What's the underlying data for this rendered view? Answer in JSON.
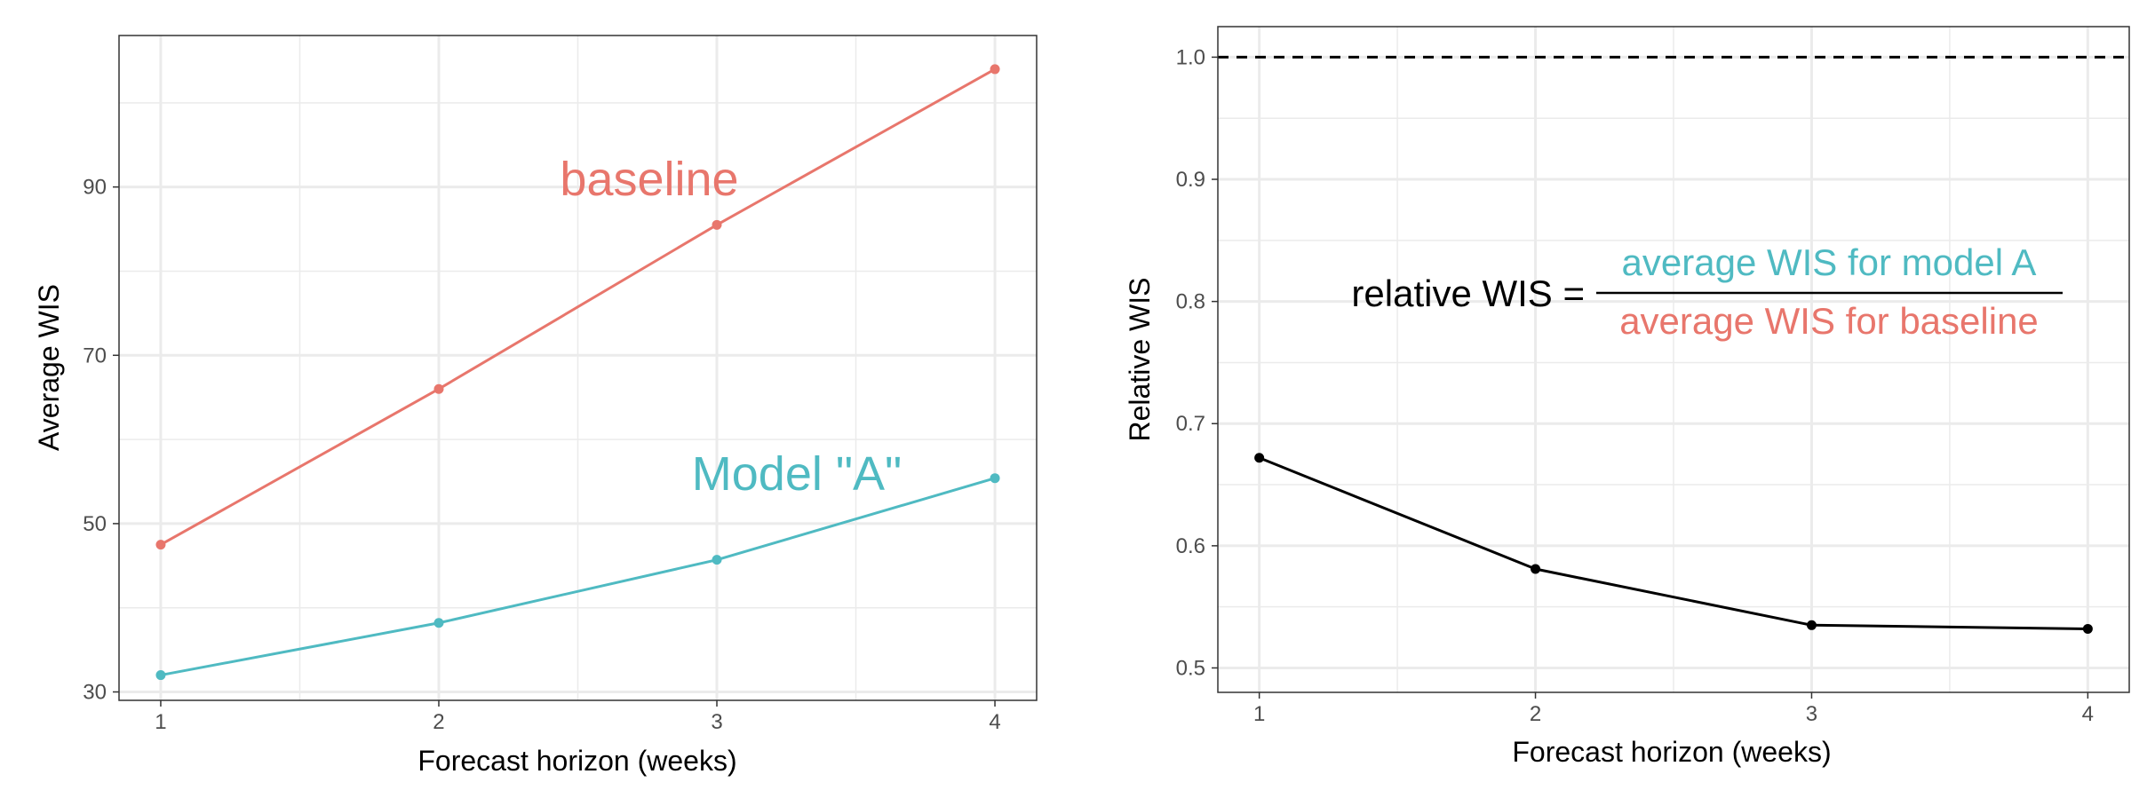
{
  "colors": {
    "baseline": "#e8766c",
    "model_a": "#4fbac2",
    "relative": "#000000",
    "grid": "#ebebeb",
    "axis_text": "#4d4d4d",
    "formula_text": "#000000"
  },
  "chart_data": [
    {
      "type": "line",
      "title": "",
      "xlabel": "Forecast horizon (weeks)",
      "ylabel": "Average WIS",
      "x": [
        1,
        2,
        3,
        4
      ],
      "xlim": [
        0.85,
        4.15
      ],
      "ylim": [
        29,
        108
      ],
      "x_ticks": [
        1,
        2,
        3,
        4
      ],
      "y_ticks": [
        30,
        50,
        70,
        90
      ],
      "grid": true,
      "series": [
        {
          "name": "baseline",
          "color_key": "baseline",
          "values": [
            47.5,
            66,
            85.5,
            104
          ]
        },
        {
          "name": "Model \"A\"",
          "color_key": "model_a",
          "values": [
            32,
            38.2,
            45.7,
            55.4
          ]
        }
      ]
    },
    {
      "type": "line",
      "title": "",
      "xlabel": "Forecast horizon (weeks)",
      "ylabel": "Relative WIS",
      "x": [
        1,
        2,
        3,
        4
      ],
      "xlim": [
        0.85,
        4.15
      ],
      "ylim": [
        0.48,
        1.025
      ],
      "x_ticks": [
        1,
        2,
        3,
        4
      ],
      "y_ticks": [
        0.5,
        0.6,
        0.7,
        0.8,
        0.9,
        1.0
      ],
      "y_tick_labels": [
        "0.5",
        "0.6",
        "0.7",
        "0.8",
        "0.9",
        "1.0"
      ],
      "grid": true,
      "reference_line": {
        "y": 1.0,
        "style": "dashed"
      },
      "series": [
        {
          "color_key": "relative",
          "values": [
            0.672,
            0.581,
            0.535,
            0.532
          ]
        }
      ],
      "annotation": {
        "lhs": "relative WIS =",
        "numerator": "average WIS for model A",
        "denominator": "average WIS for baseline"
      }
    }
  ]
}
